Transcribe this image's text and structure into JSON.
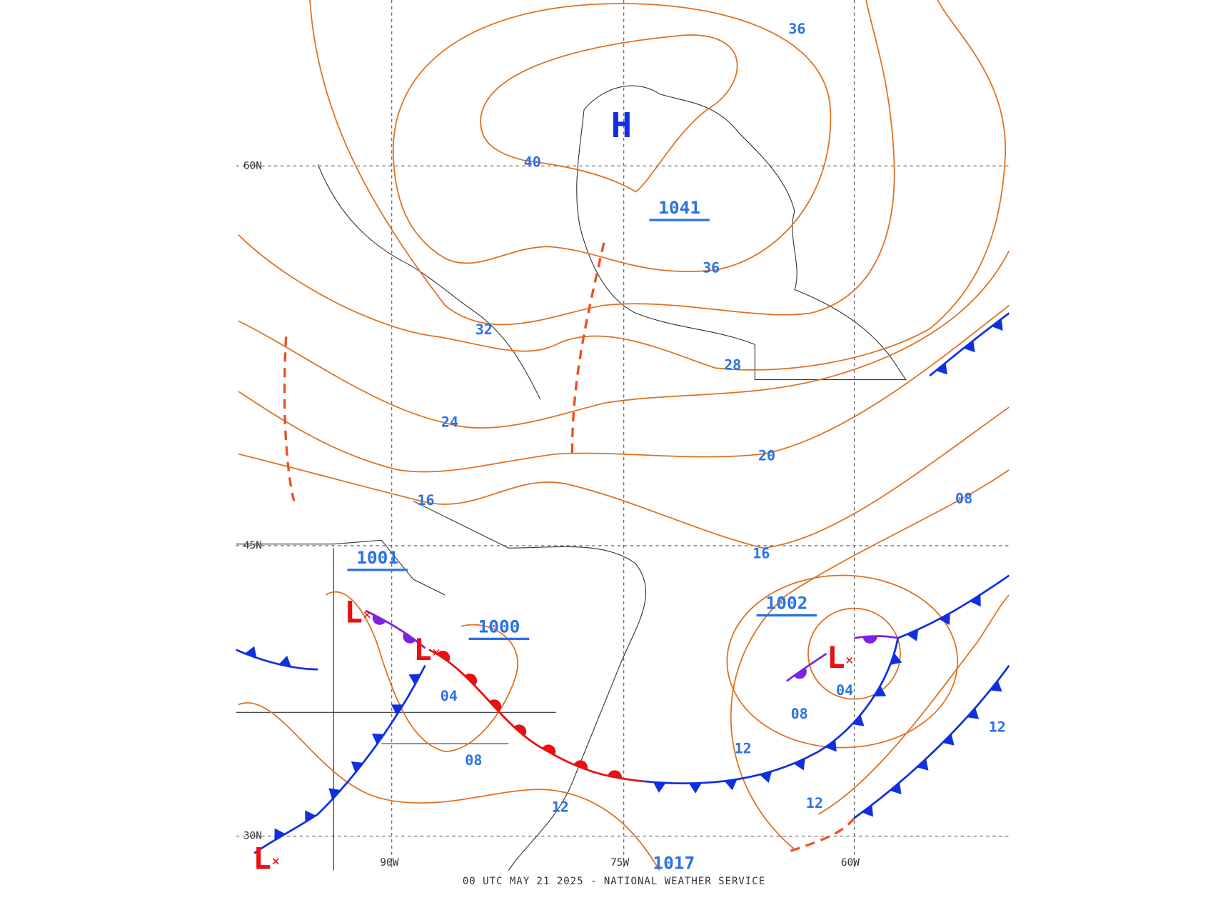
{
  "footer": "00 UTC MAY 21 2025 - NATIONAL WEATHER SERVICE",
  "grid_labels": {
    "lat": [
      "60N",
      "45N",
      "30N"
    ],
    "lon": [
      "90W",
      "75W",
      "60W"
    ]
  },
  "highs": [
    {
      "label": "H",
      "pressure": "1041"
    }
  ],
  "lows": [
    {
      "label": "L",
      "pressure": "1001"
    },
    {
      "label": "L",
      "pressure": "1000"
    },
    {
      "label": "L",
      "pressure": "1002"
    },
    {
      "label": "L"
    }
  ],
  "extra_pressure": [
    "1017"
  ],
  "isobar_labels": [
    "36",
    "40",
    "36",
    "32",
    "28",
    "24",
    "20",
    "16",
    "16",
    "08",
    "04",
    "08",
    "04",
    "08",
    "12",
    "12",
    "12",
    "12"
  ]
}
